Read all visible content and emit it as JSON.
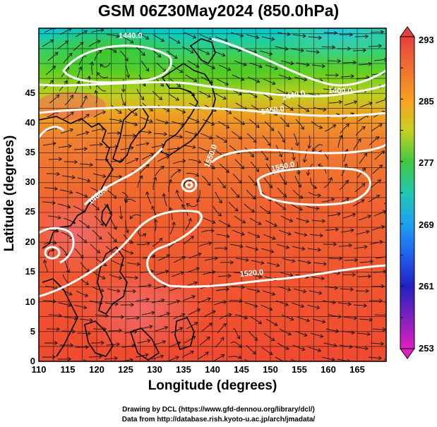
{
  "title": "GSM 06Z30May2024 (850.0hPa)",
  "x_axis": {
    "label": "Longitude (degrees)",
    "ticks": [
      "110",
      "115",
      "120",
      "125",
      "130",
      "135",
      "140",
      "145",
      "150",
      "155",
      "160",
      "165"
    ]
  },
  "y_axis": {
    "label": "Latitude  (degrees)",
    "ticks": [
      "0",
      "5",
      "10",
      "15",
      "20",
      "25",
      "30",
      "35",
      "40",
      "45"
    ]
  },
  "colorbar": {
    "ticks": [
      "293",
      "285",
      "277",
      "269",
      "261",
      "253"
    ],
    "colors": [
      "#e04040",
      "#ff7a20",
      "#ffc020",
      "#40c020",
      "#00c0c0",
      "#0080ff",
      "#2020c0",
      "#e020c0"
    ]
  },
  "contours": {
    "labels": [
      "1440.0",
      "1400.0",
      "1440.0",
      "1450.0",
      "1550.0",
      "1550.0",
      "1460.0",
      "1520.0"
    ]
  },
  "credits": [
    "Drawing by DCL (https://www.gfd-dennou.org/library/dcl/)",
    "Data from http://database.rish.kyoto-u.ac.jp/arch/jmadata/"
  ]
}
